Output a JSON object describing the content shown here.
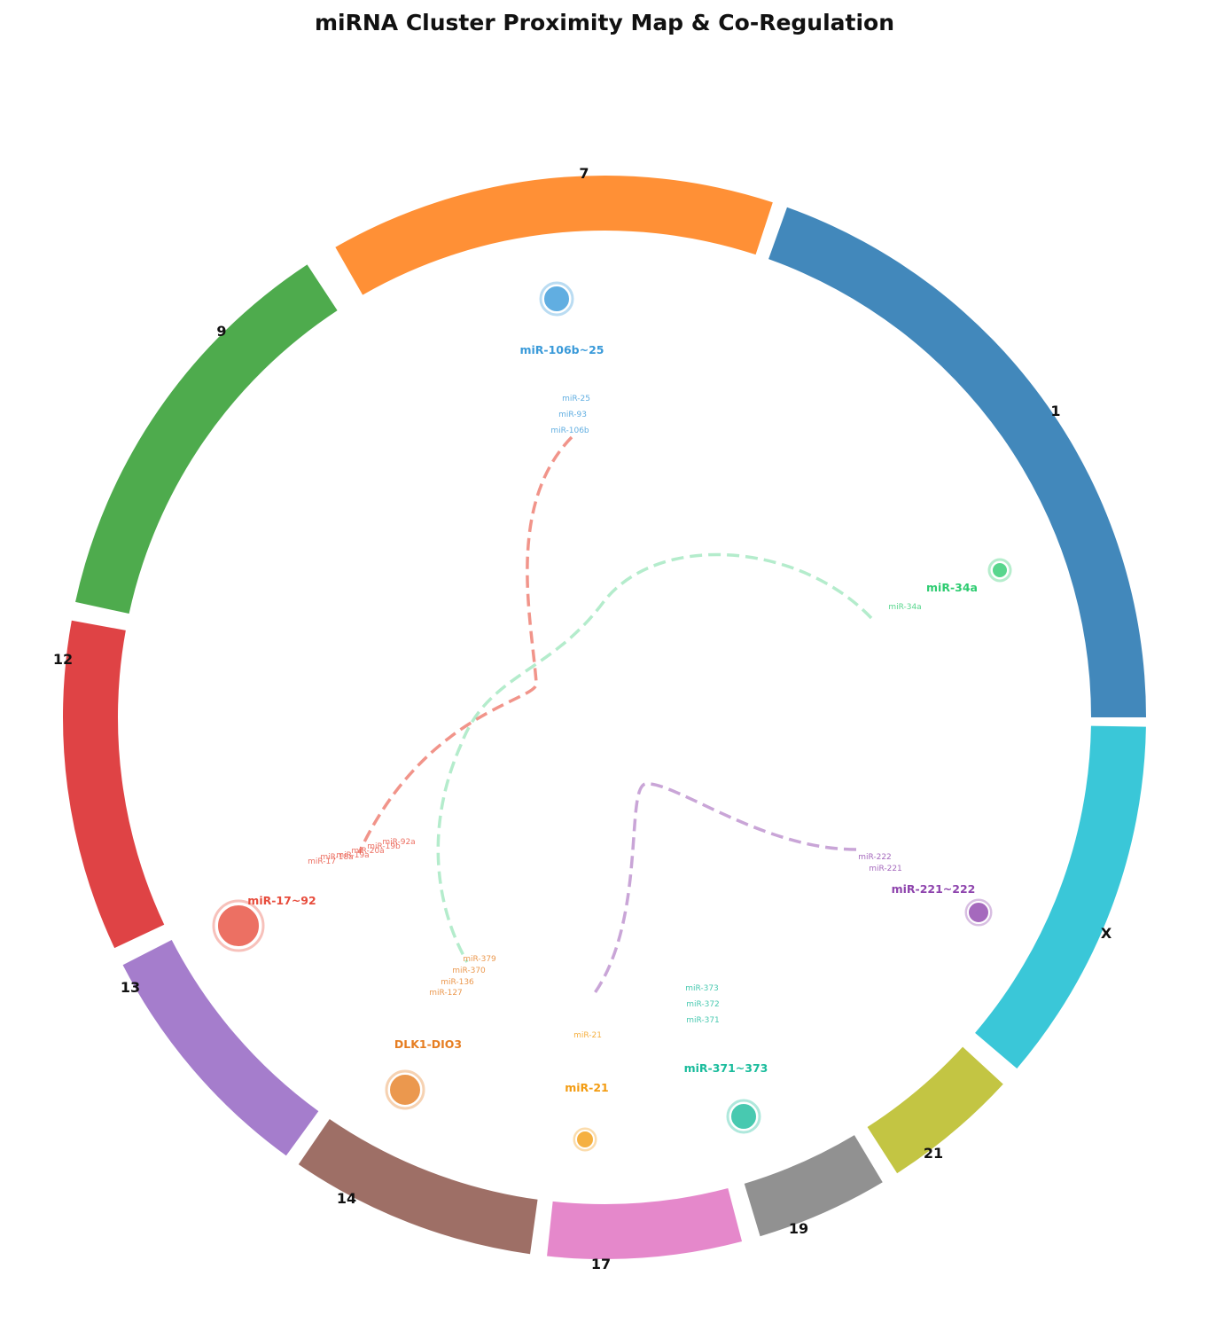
{
  "title": "miRNA Cluster Proximity Map & Co-Regulation",
  "chromosomes": [
    {
      "id": "1",
      "label": "1",
      "color": "#2e7bb4"
    },
    {
      "id": "X",
      "label": "X",
      "color": "#25c1d4"
    },
    {
      "id": "21",
      "label": "21",
      "color": "#bcbf2f"
    },
    {
      "id": "19",
      "label": "19",
      "color": "#858585"
    },
    {
      "id": "17",
      "label": "17",
      "color": "#e27bc5"
    },
    {
      "id": "14",
      "label": "14",
      "color": "#935f55"
    },
    {
      "id": "13",
      "label": "13",
      "color": "#9b6fc6"
    },
    {
      "id": "12",
      "label": "12",
      "color": "#db2f31"
    },
    {
      "id": "9",
      "label": "9",
      "color": "#3ba23a"
    },
    {
      "id": "7",
      "label": "7",
      "color": "#ff8420"
    }
  ],
  "clusters": [
    {
      "id": "mir106b",
      "name": "miR-106b~25",
      "color": "#3a9ad9",
      "members": [
        "miR-25",
        "miR-93",
        "miR-106b"
      ]
    },
    {
      "id": "mir34a",
      "name": "miR-34a",
      "color": "#2ecc71",
      "members": [
        "miR-34a"
      ]
    },
    {
      "id": "mir221",
      "name": "miR-221~222",
      "color": "#8e44ad",
      "members": [
        "miR-222",
        "miR-221"
      ]
    },
    {
      "id": "mir371",
      "name": "miR-371~373",
      "color": "#1abc9c",
      "members": [
        "miR-373",
        "miR-372",
        "miR-371"
      ]
    },
    {
      "id": "mir21",
      "name": "miR-21",
      "color": "#f39c12",
      "members": [
        "miR-21"
      ]
    },
    {
      "id": "dlk1",
      "name": "DLK1-DIO3",
      "color": "#e67e22",
      "members": [
        "miR-379",
        "miR-370",
        "miR-136",
        "miR-127"
      ]
    },
    {
      "id": "mir17",
      "name": "miR-17~92",
      "color": "#e74c3c",
      "members": [
        "miR-92a",
        "miR-19b",
        "miR-20a",
        "miR-19a",
        "miR-18a",
        "miR-17"
      ]
    }
  ],
  "links": [
    {
      "from": "mir106b",
      "to": "mir17",
      "color": "#e74c3c"
    },
    {
      "from": "mir34a",
      "to": "dlk1",
      "color": "#82e0aa"
    },
    {
      "from": "mir221",
      "to": "mir21",
      "color": "#a569bd"
    }
  ]
}
